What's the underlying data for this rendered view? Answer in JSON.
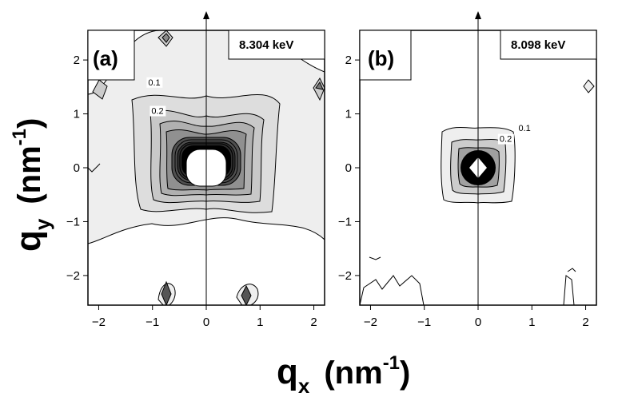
{
  "figure": {
    "x_axis_label": "q",
    "x_axis_sub": "x",
    "x_axis_unit": "(nm",
    "x_axis_exp": "-1",
    "x_axis_close": ")",
    "y_axis_label": "q",
    "y_axis_sub": "y",
    "y_axis_unit": "(nm",
    "y_axis_exp": "-1",
    "y_axis_close": ")"
  },
  "chart_data": [
    {
      "type": "contour",
      "panel_label": "(a)",
      "annotation": "8.304 keV",
      "xlim": [
        -2.2,
        2.2
      ],
      "ylim": [
        -2.55,
        2.55
      ],
      "xticks": [
        -2,
        -1,
        0,
        1,
        2
      ],
      "yticks": [
        -2,
        -1,
        0,
        1,
        2
      ],
      "level_labels": [
        {
          "text": "0.1",
          "x": -1.08,
          "y": 1.53
        },
        {
          "text": "0.2",
          "x": -1.02,
          "y": 1.0
        }
      ],
      "central_peak": {
        "x": 0,
        "y": 0
      },
      "side_peaks": [
        {
          "x": -0.75,
          "y": 2.45
        },
        {
          "x": -2.05,
          "y": 1.45
        },
        {
          "x": 2.05,
          "y": 1.5
        },
        {
          "x": -0.7,
          "y": -2.35
        },
        {
          "x": 0.75,
          "y": -2.35
        }
      ],
      "grid": false
    },
    {
      "type": "contour",
      "panel_label": "(b)",
      "annotation": "8.098 keV",
      "xlim": [
        -2.2,
        2.2
      ],
      "ylim": [
        -2.55,
        2.55
      ],
      "xticks": [
        -2,
        -1,
        0,
        1,
        2
      ],
      "yticks": [
        -2,
        -1,
        0,
        1,
        2
      ],
      "level_labels": [
        {
          "text": "0.1",
          "x": 0.75,
          "y": 0.68
        },
        {
          "text": "0.2",
          "x": 0.4,
          "y": 0.48
        }
      ],
      "central_peak": {
        "x": 0,
        "y": 0
      },
      "side_peaks": [
        {
          "x": 2.05,
          "y": 1.5
        }
      ],
      "grid": false
    }
  ]
}
